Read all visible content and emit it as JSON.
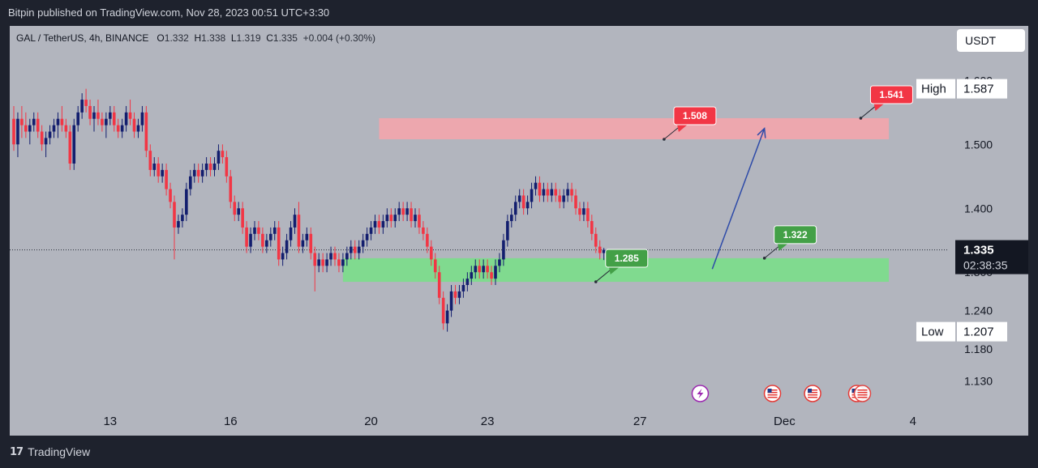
{
  "header": {
    "publish_line": "Bitpin published on TradingView.com, Nov 28, 2023 00:51 UTC+3:30"
  },
  "legend": {
    "symbol": "GAL / TetherUS, 4h, BINANCE",
    "o_label": "O",
    "o": "1.332",
    "h_label": "H",
    "h": "1.338",
    "l_label": "L",
    "l": "1.319",
    "c_label": "C",
    "c": "1.335",
    "change": "+0.004 (+0.30%)"
  },
  "currency": "USDT",
  "footer": {
    "brand": "TradingView",
    "brand_mark": "17"
  },
  "chart_data": {
    "type": "candlestick",
    "timeframe": "4h",
    "price_axis": {
      "ticks": [
        1.13,
        1.18,
        1.24,
        1.3,
        1.4,
        1.5,
        1.6
      ],
      "tick_labels": [
        "1.130",
        "1.180",
        "1.240",
        "1.300",
        "1.400",
        "1.500",
        "1.600"
      ],
      "range": [
        1.09,
        1.66
      ]
    },
    "time_axis": {
      "labels": [
        "13",
        "16",
        "20",
        "23",
        "27",
        "Dec",
        "4"
      ],
      "label_bar_index": [
        24,
        54,
        89,
        118,
        156,
        192,
        224
      ]
    },
    "high_marker": {
      "label": "High",
      "value": "1.587"
    },
    "low_marker": {
      "label": "Low",
      "value": "1.207"
    },
    "last_price": {
      "value": "1.335",
      "countdown": "02:38:35"
    },
    "colors": {
      "up": "#131e6e",
      "down": "#f23645",
      "zone_resistance": "#f7a4ab",
      "zone_support": "#7ddc8c",
      "arrow": "#2d4aa8",
      "red_label": "#f23645",
      "green_label": "#43a047"
    },
    "zones": [
      {
        "name": "resistance",
        "from_price": 1.508,
        "to_price": 1.541,
        "start_bar": 91,
        "end_bar": 218
      },
      {
        "name": "support",
        "from_price": 1.285,
        "to_price": 1.322,
        "start_bar": 82,
        "end_bar": 218
      }
    ],
    "annotations": [
      {
        "text": "1.508",
        "price": 1.508,
        "bar": 162,
        "color": "red"
      },
      {
        "text": "1.541",
        "price": 1.541,
        "bar": 211,
        "color": "red"
      },
      {
        "text": "1.285",
        "price": 1.285,
        "bar": 145,
        "color": "green"
      },
      {
        "text": "1.322",
        "price": 1.322,
        "bar": 187,
        "color": "green"
      }
    ],
    "projection_arrow": {
      "from_bar": 174,
      "from_price": 1.305,
      "to_bar": 187,
      "to_price": 1.525
    },
    "event_icons": [
      {
        "name": "lightning-event",
        "bar": 171
      },
      {
        "name": "us-flag-event",
        "bar": 189
      },
      {
        "name": "us-flag-event",
        "bar": 199
      },
      {
        "name": "us-flag-event",
        "bar": 210
      }
    ],
    "candles": [
      [
        1.54,
        1.56,
        1.49,
        1.5
      ],
      [
        1.5,
        1.55,
        1.48,
        1.54
      ],
      [
        1.54,
        1.56,
        1.51,
        1.53
      ],
      [
        1.53,
        1.55,
        1.51,
        1.52
      ],
      [
        1.52,
        1.54,
        1.5,
        1.53
      ],
      [
        1.53,
        1.55,
        1.52,
        1.54
      ],
      [
        1.54,
        1.55,
        1.51,
        1.52
      ],
      [
        1.52,
        1.53,
        1.49,
        1.5
      ],
      [
        1.5,
        1.52,
        1.48,
        1.51
      ],
      [
        1.51,
        1.53,
        1.5,
        1.52
      ],
      [
        1.52,
        1.54,
        1.51,
        1.53
      ],
      [
        1.53,
        1.55,
        1.51,
        1.54
      ],
      [
        1.54,
        1.56,
        1.52,
        1.53
      ],
      [
        1.53,
        1.54,
        1.51,
        1.52
      ],
      [
        1.52,
        1.53,
        1.46,
        1.47
      ],
      [
        1.47,
        1.54,
        1.46,
        1.53
      ],
      [
        1.53,
        1.56,
        1.52,
        1.55
      ],
      [
        1.55,
        1.58,
        1.54,
        1.57
      ],
      [
        1.57,
        1.587,
        1.55,
        1.56
      ],
      [
        1.56,
        1.57,
        1.53,
        1.54
      ],
      [
        1.54,
        1.56,
        1.52,
        1.55
      ],
      [
        1.55,
        1.57,
        1.53,
        1.54
      ],
      [
        1.54,
        1.55,
        1.52,
        1.53
      ],
      [
        1.53,
        1.55,
        1.51,
        1.54
      ],
      [
        1.54,
        1.56,
        1.53,
        1.55
      ],
      [
        1.55,
        1.56,
        1.52,
        1.53
      ],
      [
        1.53,
        1.54,
        1.51,
        1.52
      ],
      [
        1.52,
        1.54,
        1.51,
        1.53
      ],
      [
        1.53,
        1.56,
        1.52,
        1.55
      ],
      [
        1.55,
        1.57,
        1.53,
        1.54
      ],
      [
        1.54,
        1.55,
        1.51,
        1.52
      ],
      [
        1.52,
        1.54,
        1.51,
        1.53
      ],
      [
        1.53,
        1.56,
        1.52,
        1.55
      ],
      [
        1.55,
        1.56,
        1.48,
        1.49
      ],
      [
        1.49,
        1.5,
        1.45,
        1.46
      ],
      [
        1.46,
        1.48,
        1.45,
        1.47
      ],
      [
        1.47,
        1.48,
        1.44,
        1.45
      ],
      [
        1.45,
        1.47,
        1.44,
        1.46
      ],
      [
        1.46,
        1.47,
        1.42,
        1.43
      ],
      [
        1.43,
        1.44,
        1.4,
        1.41
      ],
      [
        1.41,
        1.42,
        1.32,
        1.37
      ],
      [
        1.37,
        1.39,
        1.36,
        1.38
      ],
      [
        1.38,
        1.4,
        1.37,
        1.39
      ],
      [
        1.39,
        1.44,
        1.38,
        1.43
      ],
      [
        1.43,
        1.46,
        1.42,
        1.45
      ],
      [
        1.45,
        1.47,
        1.44,
        1.46
      ],
      [
        1.46,
        1.47,
        1.44,
        1.45
      ],
      [
        1.45,
        1.47,
        1.44,
        1.46
      ],
      [
        1.46,
        1.48,
        1.45,
        1.47
      ],
      [
        1.47,
        1.48,
        1.45,
        1.46
      ],
      [
        1.46,
        1.48,
        1.45,
        1.47
      ],
      [
        1.47,
        1.5,
        1.46,
        1.49
      ],
      [
        1.49,
        1.5,
        1.47,
        1.48
      ],
      [
        1.48,
        1.49,
        1.44,
        1.45
      ],
      [
        1.45,
        1.46,
        1.4,
        1.41
      ],
      [
        1.41,
        1.42,
        1.38,
        1.39
      ],
      [
        1.39,
        1.41,
        1.38,
        1.4
      ],
      [
        1.4,
        1.41,
        1.36,
        1.37
      ],
      [
        1.37,
        1.38,
        1.33,
        1.34
      ],
      [
        1.34,
        1.37,
        1.33,
        1.36
      ],
      [
        1.36,
        1.38,
        1.35,
        1.37
      ],
      [
        1.37,
        1.38,
        1.35,
        1.36
      ],
      [
        1.36,
        1.37,
        1.33,
        1.34
      ],
      [
        1.34,
        1.36,
        1.33,
        1.35
      ],
      [
        1.35,
        1.37,
        1.34,
        1.36
      ],
      [
        1.36,
        1.38,
        1.35,
        1.37
      ],
      [
        1.37,
        1.38,
        1.31,
        1.32
      ],
      [
        1.32,
        1.34,
        1.31,
        1.33
      ],
      [
        1.33,
        1.36,
        1.32,
        1.35
      ],
      [
        1.35,
        1.38,
        1.34,
        1.37
      ],
      [
        1.37,
        1.4,
        1.36,
        1.39
      ],
      [
        1.39,
        1.41,
        1.33,
        1.34
      ],
      [
        1.34,
        1.36,
        1.33,
        1.35
      ],
      [
        1.35,
        1.37,
        1.34,
        1.36
      ],
      [
        1.36,
        1.37,
        1.32,
        1.33
      ],
      [
        1.33,
        1.34,
        1.27,
        1.31
      ],
      [
        1.31,
        1.33,
        1.3,
        1.32
      ],
      [
        1.32,
        1.33,
        1.3,
        1.31
      ],
      [
        1.31,
        1.33,
        1.3,
        1.32
      ],
      [
        1.32,
        1.34,
        1.31,
        1.33
      ],
      [
        1.33,
        1.34,
        1.31,
        1.32
      ],
      [
        1.32,
        1.33,
        1.3,
        1.31
      ],
      [
        1.31,
        1.33,
        1.3,
        1.32
      ],
      [
        1.32,
        1.34,
        1.31,
        1.33
      ],
      [
        1.33,
        1.35,
        1.32,
        1.34
      ],
      [
        1.34,
        1.35,
        1.32,
        1.33
      ],
      [
        1.33,
        1.35,
        1.32,
        1.34
      ],
      [
        1.34,
        1.36,
        1.33,
        1.35
      ],
      [
        1.35,
        1.37,
        1.34,
        1.36
      ],
      [
        1.36,
        1.38,
        1.35,
        1.37
      ],
      [
        1.37,
        1.39,
        1.36,
        1.38
      ],
      [
        1.38,
        1.39,
        1.36,
        1.37
      ],
      [
        1.37,
        1.39,
        1.36,
        1.38
      ],
      [
        1.38,
        1.4,
        1.37,
        1.39
      ],
      [
        1.39,
        1.4,
        1.37,
        1.38
      ],
      [
        1.38,
        1.4,
        1.37,
        1.39
      ],
      [
        1.39,
        1.41,
        1.38,
        1.4
      ],
      [
        1.4,
        1.41,
        1.38,
        1.39
      ],
      [
        1.39,
        1.41,
        1.38,
        1.4
      ],
      [
        1.4,
        1.41,
        1.37,
        1.38
      ],
      [
        1.38,
        1.4,
        1.37,
        1.39
      ],
      [
        1.39,
        1.4,
        1.36,
        1.37
      ],
      [
        1.37,
        1.38,
        1.35,
        1.36
      ],
      [
        1.36,
        1.37,
        1.33,
        1.34
      ],
      [
        1.34,
        1.35,
        1.31,
        1.32
      ],
      [
        1.32,
        1.33,
        1.29,
        1.3
      ],
      [
        1.3,
        1.31,
        1.25,
        1.26
      ],
      [
        1.26,
        1.27,
        1.21,
        1.22
      ],
      [
        1.22,
        1.25,
        1.207,
        1.24
      ],
      [
        1.24,
        1.28,
        1.23,
        1.27
      ],
      [
        1.27,
        1.28,
        1.25,
        1.26
      ],
      [
        1.26,
        1.28,
        1.25,
        1.27
      ],
      [
        1.27,
        1.29,
        1.26,
        1.28
      ],
      [
        1.28,
        1.3,
        1.27,
        1.29
      ],
      [
        1.29,
        1.31,
        1.28,
        1.3
      ],
      [
        1.3,
        1.32,
        1.29,
        1.31
      ],
      [
        1.31,
        1.32,
        1.29,
        1.3
      ],
      [
        1.3,
        1.32,
        1.29,
        1.31
      ],
      [
        1.31,
        1.32,
        1.29,
        1.3
      ],
      [
        1.3,
        1.31,
        1.28,
        1.29
      ],
      [
        1.29,
        1.32,
        1.28,
        1.31
      ],
      [
        1.31,
        1.33,
        1.3,
        1.32
      ],
      [
        1.32,
        1.36,
        1.31,
        1.35
      ],
      [
        1.35,
        1.39,
        1.34,
        1.38
      ],
      [
        1.38,
        1.4,
        1.37,
        1.39
      ],
      [
        1.39,
        1.42,
        1.38,
        1.41
      ],
      [
        1.41,
        1.43,
        1.4,
        1.42
      ],
      [
        1.42,
        1.43,
        1.39,
        1.4
      ],
      [
        1.4,
        1.42,
        1.39,
        1.41
      ],
      [
        1.41,
        1.44,
        1.4,
        1.43
      ],
      [
        1.43,
        1.45,
        1.42,
        1.44
      ],
      [
        1.44,
        1.45,
        1.41,
        1.42
      ],
      [
        1.42,
        1.44,
        1.41,
        1.43
      ],
      [
        1.43,
        1.44,
        1.41,
        1.42
      ],
      [
        1.42,
        1.44,
        1.41,
        1.43
      ],
      [
        1.43,
        1.44,
        1.41,
        1.42
      ],
      [
        1.42,
        1.43,
        1.4,
        1.41
      ],
      [
        1.41,
        1.43,
        1.4,
        1.42
      ],
      [
        1.42,
        1.44,
        1.41,
        1.43
      ],
      [
        1.43,
        1.44,
        1.41,
        1.42
      ],
      [
        1.42,
        1.43,
        1.39,
        1.4
      ],
      [
        1.4,
        1.41,
        1.38,
        1.39
      ],
      [
        1.39,
        1.41,
        1.38,
        1.4
      ],
      [
        1.4,
        1.41,
        1.37,
        1.38
      ],
      [
        1.38,
        1.39,
        1.35,
        1.36
      ],
      [
        1.36,
        1.37,
        1.33,
        1.34
      ],
      [
        1.34,
        1.35,
        1.32,
        1.33
      ],
      [
        1.33,
        1.338,
        1.319,
        1.335
      ]
    ]
  }
}
